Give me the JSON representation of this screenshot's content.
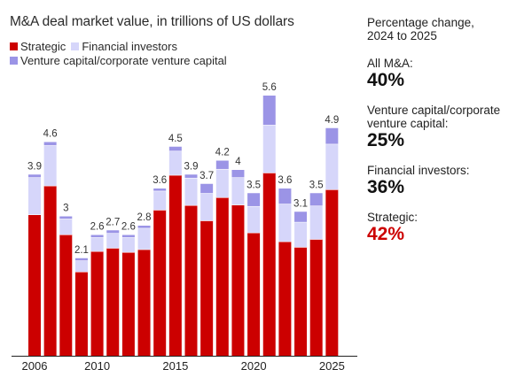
{
  "chart_data": {
    "type": "bar",
    "stacked": true,
    "title": "M&A deal market value, in trillions of US dollars",
    "xlabel": "",
    "ylabel": "",
    "ylim": [
      0,
      5.6
    ],
    "grid": false,
    "legend_position": "top-left",
    "categories": [
      "2006",
      "2007",
      "2008",
      "2009",
      "2010",
      "2011",
      "2012",
      "2013",
      "2014",
      "2015",
      "2016",
      "2017",
      "2018",
      "2019",
      "2020",
      "2021",
      "2022",
      "2023",
      "2024",
      "2025"
    ],
    "tick_labels": [
      "2006",
      "2010",
      "2015",
      "2020",
      "2025"
    ],
    "series": [
      {
        "name": "Strategic",
        "color": "#cc0000",
        "values": [
          3.04,
          3.66,
          2.61,
          1.81,
          2.25,
          2.32,
          2.23,
          2.29,
          3.14,
          3.89,
          3.24,
          2.91,
          3.41,
          3.25,
          2.65,
          3.94,
          2.46,
          2.34,
          2.51,
          3.58
        ]
      },
      {
        "name": "Financial investors",
        "color": "#d6d6fa",
        "values": [
          0.8,
          0.87,
          0.34,
          0.24,
          0.3,
          0.32,
          0.32,
          0.46,
          0.41,
          0.52,
          0.59,
          0.59,
          0.61,
          0.59,
          0.57,
          1.03,
          0.81,
          0.54,
          0.72,
          0.98
        ]
      },
      {
        "name": "Venture capital/corporate venture capital",
        "color": "#9b94e6",
        "values": [
          0.06,
          0.07,
          0.05,
          0.05,
          0.05,
          0.06,
          0.05,
          0.05,
          0.05,
          0.09,
          0.07,
          0.2,
          0.18,
          0.16,
          0.28,
          0.63,
          0.33,
          0.22,
          0.27,
          0.34
        ]
      }
    ],
    "totals": [
      "3.9",
      "4.6",
      "3",
      "2.1",
      "2.6",
      "2.7",
      "2.6",
      "2.8",
      "3.6",
      "4.5",
      "3.9",
      "3.7",
      "4.2",
      "4",
      "3.5",
      "5.6",
      "3.6",
      "3.1",
      "3.5",
      "4.9"
    ],
    "total_values": [
      3.9,
      4.6,
      3.0,
      2.1,
      2.6,
      2.7,
      2.6,
      2.8,
      3.6,
      4.5,
      3.9,
      3.7,
      4.2,
      4.0,
      3.5,
      5.6,
      3.6,
      3.1,
      3.5,
      4.9
    ]
  },
  "legend": {
    "strategic": "Strategic",
    "financial": "Financial investors",
    "vc": "Venture capital/corporate venture capital"
  },
  "panel": {
    "heading_line1": "Percentage change,",
    "heading_line2": "2024 to 2025",
    "items": [
      {
        "label_line1": "All M&A:",
        "label_line2": "",
        "value": "40%",
        "highlight": false
      },
      {
        "label_line1": "Venture capital/corporate",
        "label_line2": "venture capital:",
        "value": "25%",
        "highlight": false
      },
      {
        "label_line1": "Financial investors:",
        "label_line2": "",
        "value": "36%",
        "highlight": false
      },
      {
        "label_line1": "Strategic:",
        "label_line2": "",
        "value": "42%",
        "highlight": true
      }
    ],
    "highlight_color": "#cc0000"
  }
}
